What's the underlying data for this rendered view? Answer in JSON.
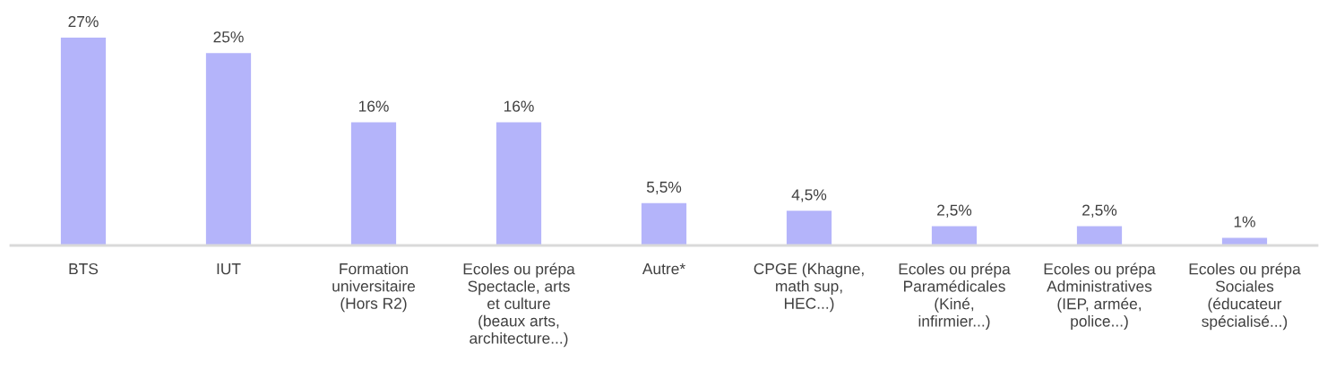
{
  "chart_data": {
    "type": "bar",
    "categories": [
      "BTS",
      "IUT",
      "Formation\nuniversitaire\n(Hors R2)",
      "Ecoles ou prépa\nSpectacle, arts\net culture\n(beaux arts,\narchitecture...)",
      "Autre*",
      "CPGE (Khagne,\nmath sup,\nHEC...)",
      "Ecoles ou prépa\nParamédicales\n(Kiné,\ninfirmier...)",
      "Ecoles ou prépa\nAdministratives\n(IEP, armée,\npolice...)",
      "Ecoles ou prépa\nSociales\n(éducateur\nspécialisé...)"
    ],
    "values": [
      27,
      25,
      16,
      16,
      5.5,
      4.5,
      2.5,
      2.5,
      1
    ],
    "value_labels": [
      "27%",
      "25%",
      "16%",
      "16%",
      "5,5%",
      "4,5%",
      "2,5%",
      "2,5%",
      "1%"
    ],
    "color": "#b4b4fa",
    "grid": false,
    "legend": false
  }
}
